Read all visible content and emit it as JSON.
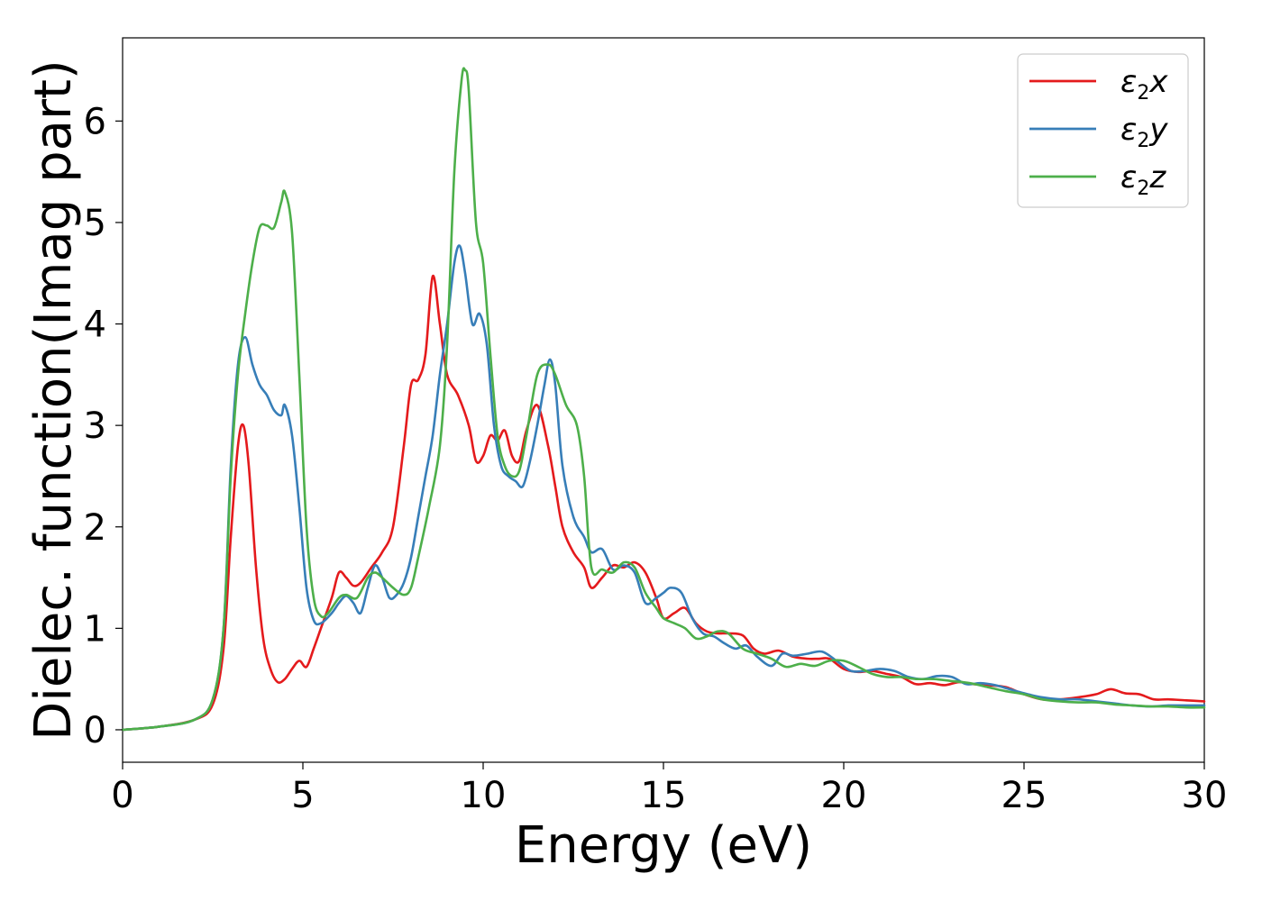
{
  "chart_data": {
    "type": "line",
    "xlabel": "Energy (eV)",
    "ylabel": "Dielec. function(Imag part)",
    "xlim": [
      0,
      30
    ],
    "ylim": [
      -0.32,
      6.82
    ],
    "xticks": [
      0,
      5,
      10,
      15,
      20,
      25,
      30
    ],
    "yticks": [
      0,
      1,
      2,
      3,
      4,
      5,
      6
    ],
    "grid": false,
    "legend_position": "upper-right",
    "series": [
      {
        "name": "ε₂x",
        "legend": {
          "symbol": "ε",
          "sub": "2",
          "axis": "x"
        },
        "color": "#e41a1c",
        "x": [
          0,
          1,
          2,
          2.5,
          2.8,
          3.0,
          3.2,
          3.35,
          3.5,
          3.7,
          3.9,
          4.1,
          4.3,
          4.5,
          4.7,
          4.9,
          5.1,
          5.3,
          5.5,
          5.8,
          6.0,
          6.2,
          6.4,
          6.6,
          6.9,
          7.2,
          7.5,
          7.8,
          8.0,
          8.2,
          8.4,
          8.6,
          8.8,
          9.0,
          9.3,
          9.6,
          9.8,
          10.0,
          10.2,
          10.4,
          10.6,
          10.8,
          11.0,
          11.2,
          11.5,
          11.8,
          12.0,
          12.2,
          12.5,
          12.8,
          13.0,
          13.3,
          13.6,
          13.9,
          14.2,
          14.5,
          14.8,
          15.0,
          15.3,
          15.6,
          15.9,
          16.2,
          16.5,
          16.8,
          17.2,
          17.5,
          17.8,
          18.2,
          18.6,
          19.0,
          19.3,
          19.6,
          20.0,
          20.4,
          20.8,
          21.2,
          21.6,
          22.0,
          22.4,
          22.8,
          23.2,
          23.6,
          24.0,
          24.5,
          25.0,
          25.5,
          26.0,
          26.5,
          27.0,
          27.4,
          27.8,
          28.2,
          28.6,
          29.0,
          29.5,
          30.0
        ],
        "y": [
          0.0,
          0.03,
          0.1,
          0.25,
          0.8,
          1.9,
          2.8,
          3.0,
          2.6,
          1.6,
          0.9,
          0.6,
          0.47,
          0.5,
          0.6,
          0.68,
          0.62,
          0.8,
          1.0,
          1.3,
          1.55,
          1.5,
          1.42,
          1.45,
          1.6,
          1.75,
          2.0,
          2.8,
          3.4,
          3.45,
          3.7,
          4.47,
          4.0,
          3.5,
          3.3,
          3.0,
          2.65,
          2.7,
          2.9,
          2.85,
          2.95,
          2.7,
          2.65,
          2.95,
          3.2,
          2.8,
          2.4,
          2.0,
          1.75,
          1.6,
          1.4,
          1.5,
          1.62,
          1.6,
          1.65,
          1.55,
          1.3,
          1.1,
          1.15,
          1.2,
          1.05,
          0.97,
          0.95,
          0.95,
          0.93,
          0.8,
          0.75,
          0.78,
          0.72,
          0.7,
          0.7,
          0.7,
          0.6,
          0.57,
          0.58,
          0.55,
          0.52,
          0.45,
          0.46,
          0.44,
          0.47,
          0.45,
          0.44,
          0.42,
          0.35,
          0.3,
          0.3,
          0.32,
          0.35,
          0.4,
          0.36,
          0.35,
          0.3,
          0.3,
          0.29,
          0.28
        ]
      },
      {
        "name": "ε₂y",
        "legend": {
          "symbol": "ε",
          "sub": "2",
          "axis": "y"
        },
        "color": "#377eb8",
        "x": [
          0,
          1,
          2,
          2.5,
          2.8,
          3.0,
          3.2,
          3.4,
          3.6,
          3.8,
          4.0,
          4.2,
          4.4,
          4.5,
          4.7,
          4.9,
          5.1,
          5.3,
          5.5,
          5.8,
          6.0,
          6.2,
          6.4,
          6.6,
          6.8,
          7.0,
          7.2,
          7.4,
          7.6,
          7.8,
          8.0,
          8.2,
          8.4,
          8.6,
          8.8,
          9.0,
          9.2,
          9.35,
          9.5,
          9.7,
          9.9,
          10.1,
          10.3,
          10.5,
          10.7,
          10.9,
          11.1,
          11.3,
          11.5,
          11.7,
          11.85,
          12.0,
          12.2,
          12.5,
          12.8,
          13.0,
          13.3,
          13.6,
          13.9,
          14.2,
          14.5,
          14.8,
          15.0,
          15.2,
          15.5,
          15.8,
          16.1,
          16.4,
          16.7,
          17.0,
          17.3,
          17.6,
          18.0,
          18.3,
          18.6,
          19.0,
          19.4,
          19.8,
          20.2,
          20.6,
          21.0,
          21.4,
          21.8,
          22.2,
          22.6,
          23.0,
          23.4,
          23.8,
          24.2,
          24.6,
          25.0,
          25.5,
          26.0,
          26.5,
          27.0,
          27.5,
          28.0,
          28.5,
          29.0,
          29.5,
          30.0
        ],
        "y": [
          0.0,
          0.03,
          0.1,
          0.3,
          1.0,
          2.6,
          3.6,
          3.87,
          3.6,
          3.4,
          3.3,
          3.15,
          3.1,
          3.2,
          2.9,
          2.2,
          1.4,
          1.08,
          1.05,
          1.15,
          1.25,
          1.32,
          1.25,
          1.15,
          1.4,
          1.62,
          1.5,
          1.3,
          1.33,
          1.45,
          1.7,
          2.1,
          2.5,
          2.9,
          3.5,
          4.0,
          4.6,
          4.77,
          4.5,
          4.0,
          4.1,
          3.8,
          3.0,
          2.6,
          2.5,
          2.45,
          2.4,
          2.65,
          3.0,
          3.4,
          3.65,
          3.4,
          2.6,
          2.1,
          1.9,
          1.75,
          1.78,
          1.58,
          1.62,
          1.55,
          1.25,
          1.3,
          1.35,
          1.4,
          1.35,
          1.1,
          0.95,
          0.92,
          0.85,
          0.8,
          0.83,
          0.72,
          0.63,
          0.75,
          0.73,
          0.75,
          0.77,
          0.68,
          0.58,
          0.58,
          0.6,
          0.58,
          0.52,
          0.5,
          0.53,
          0.52,
          0.45,
          0.46,
          0.44,
          0.4,
          0.36,
          0.32,
          0.3,
          0.3,
          0.28,
          0.26,
          0.24,
          0.23,
          0.24,
          0.24,
          0.24
        ]
      },
      {
        "name": "ε₂z",
        "legend": {
          "symbol": "ε",
          "sub": "2",
          "axis": "z"
        },
        "color": "#4daf4a",
        "x": [
          0,
          1,
          2,
          2.5,
          2.8,
          3.0,
          3.2,
          3.4,
          3.6,
          3.8,
          4.0,
          4.2,
          4.4,
          4.5,
          4.7,
          4.9,
          5.1,
          5.3,
          5.5,
          5.7,
          6.0,
          6.2,
          6.5,
          6.8,
          7.0,
          7.2,
          7.5,
          7.8,
          8.0,
          8.2,
          8.5,
          8.8,
          9.0,
          9.2,
          9.4,
          9.5,
          9.6,
          9.8,
          10.0,
          10.2,
          10.4,
          10.6,
          10.8,
          11.0,
          11.2,
          11.5,
          11.8,
          12.0,
          12.3,
          12.6,
          12.8,
          13.0,
          13.3,
          13.6,
          13.9,
          14.2,
          14.5,
          14.8,
          15.0,
          15.3,
          15.6,
          15.9,
          16.2,
          16.5,
          16.8,
          17.2,
          17.6,
          18.0,
          18.4,
          18.8,
          19.2,
          19.6,
          20.0,
          20.4,
          20.8,
          21.2,
          21.6,
          22.0,
          22.5,
          23.0,
          23.5,
          24.0,
          24.5,
          25.0,
          25.5,
          26.0,
          26.5,
          27.0,
          27.5,
          28.0,
          28.5,
          29.0,
          29.5,
          30.0
        ],
        "y": [
          0.0,
          0.03,
          0.1,
          0.3,
          1.0,
          2.5,
          3.5,
          4.1,
          4.6,
          4.95,
          4.97,
          4.95,
          5.2,
          5.3,
          4.9,
          3.5,
          2.0,
          1.3,
          1.12,
          1.15,
          1.3,
          1.33,
          1.3,
          1.5,
          1.55,
          1.5,
          1.4,
          1.33,
          1.4,
          1.7,
          2.2,
          2.8,
          3.8,
          5.5,
          6.4,
          6.5,
          6.3,
          5.0,
          4.6,
          3.7,
          2.9,
          2.6,
          2.5,
          2.55,
          2.9,
          3.5,
          3.6,
          3.5,
          3.2,
          3.0,
          2.5,
          1.6,
          1.58,
          1.55,
          1.65,
          1.6,
          1.35,
          1.2,
          1.1,
          1.05,
          1.0,
          0.9,
          0.92,
          0.97,
          0.95,
          0.8,
          0.75,
          0.7,
          0.62,
          0.65,
          0.63,
          0.68,
          0.68,
          0.62,
          0.55,
          0.52,
          0.52,
          0.5,
          0.5,
          0.48,
          0.46,
          0.42,
          0.38,
          0.35,
          0.3,
          0.28,
          0.27,
          0.27,
          0.25,
          0.24,
          0.23,
          0.23,
          0.22,
          0.22
        ]
      }
    ]
  }
}
